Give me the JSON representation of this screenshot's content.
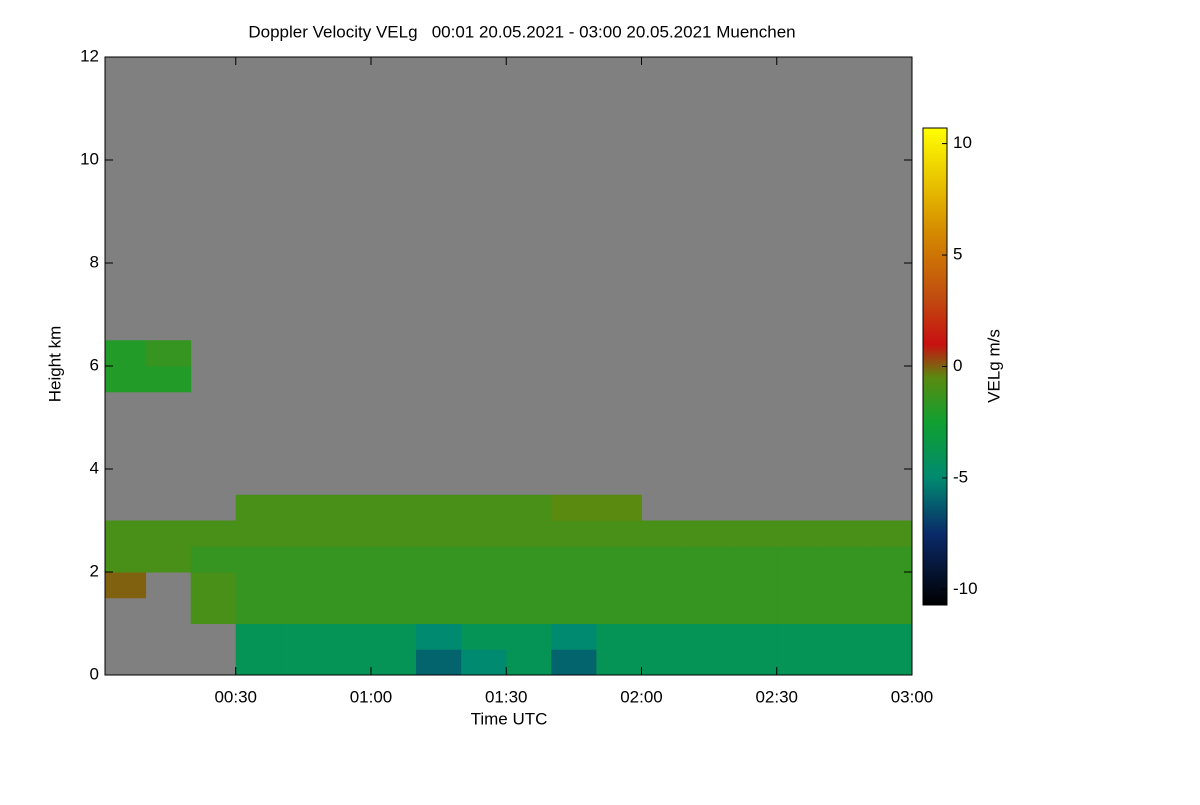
{
  "chart_data": {
    "type": "heatmap",
    "title": "Doppler Velocity VELg   00:01 20.05.2021 - 03:00 20.05.2021 Muenchen",
    "x_label": "Time UTC",
    "y_label": "Height km",
    "colorbar_label": "VELg m/s",
    "background": "#808080",
    "xlim": [
      1,
      180
    ],
    "xticks": [
      {
        "value": 30,
        "label": "00:30"
      },
      {
        "value": 60,
        "label": "01:00"
      },
      {
        "value": 90,
        "label": "01:30"
      },
      {
        "value": 120,
        "label": "02:00"
      },
      {
        "value": 150,
        "label": "02:30"
      },
      {
        "value": 180,
        "label": "03:00"
      }
    ],
    "ylim": [
      0,
      12
    ],
    "yticks": [
      0,
      2,
      4,
      6,
      8,
      10,
      12
    ],
    "clim": [
      -10.7,
      10.7
    ],
    "cticks": [
      -10,
      -5,
      0,
      5,
      10
    ],
    "colormap": [
      [
        -10.7,
        "#000000"
      ],
      [
        -7.5,
        "#0a2a6a"
      ],
      [
        -5,
        "#008a70"
      ],
      [
        -2.5,
        "#10a030"
      ],
      [
        -0.5,
        "#5a8a10"
      ],
      [
        1,
        "#c81010"
      ],
      [
        3,
        "#c04a10"
      ],
      [
        6,
        "#d48a00"
      ],
      [
        10.7,
        "#ffff00"
      ]
    ],
    "x_edges": [
      1,
      10,
      20,
      30,
      40,
      50,
      60,
      70,
      80,
      90,
      100,
      110,
      120,
      130,
      140,
      150,
      160,
      170,
      180
    ],
    "y_edges": [
      0,
      0.5,
      1,
      1.5,
      2,
      2.5,
      3,
      3.5,
      4,
      4.5,
      5,
      5.5,
      6,
      6.5,
      7
    ],
    "z": [
      [
        null,
        null,
        null,
        -4,
        -4,
        -4,
        -4,
        -6,
        -5,
        -4,
        -6,
        -4,
        -4,
        -4,
        -4,
        -4,
        -4,
        -4
      ],
      [
        null,
        null,
        null,
        -4,
        -4,
        -4,
        -4,
        -5,
        -4,
        -4,
        -5,
        -4,
        -4,
        -4,
        -4,
        -4,
        -4,
        -4
      ],
      [
        null,
        null,
        -1,
        -1.5,
        -1.5,
        -1.5,
        -1.5,
        -1.5,
        -1.5,
        -1.5,
        -1.5,
        -1.5,
        -1.5,
        -1.5,
        -1.5,
        -1.5,
        -1.5,
        -1.5
      ],
      [
        0,
        null,
        -1,
        -1.5,
        -1.5,
        -1.5,
        -1.5,
        -1.5,
        -1.5,
        -1.5,
        -1.5,
        -1.5,
        -1.5,
        -1.5,
        -1.5,
        -1.5,
        -1.5,
        -1.5
      ],
      [
        -1,
        -1,
        -1.5,
        -1.5,
        -1.5,
        -1.5,
        -1.5,
        -1.5,
        -1.5,
        -1.5,
        -1.5,
        -1.5,
        -1.5,
        -1.5,
        -1.5,
        -1.5,
        -1.5,
        -1.5
      ],
      [
        -1,
        -1,
        -1,
        -1,
        -1,
        -1,
        -1,
        -1,
        -1,
        -1,
        -1,
        -1,
        -1,
        -1,
        -1,
        -1,
        -1,
        -1
      ],
      [
        null,
        null,
        null,
        -1,
        -1,
        -1,
        -1,
        -1,
        -1,
        -1,
        -0.5,
        -0.5,
        null,
        null,
        null,
        null,
        null,
        null
      ],
      [
        null,
        null,
        null,
        null,
        null,
        null,
        null,
        null,
        null,
        null,
        null,
        null,
        null,
        null,
        null,
        null,
        null,
        null
      ],
      [
        null,
        null,
        null,
        null,
        null,
        null,
        null,
        null,
        null,
        null,
        null,
        null,
        null,
        null,
        null,
        null,
        null,
        null
      ],
      [
        null,
        null,
        null,
        null,
        null,
        null,
        null,
        null,
        null,
        null,
        null,
        null,
        null,
        null,
        null,
        null,
        null,
        null
      ],
      [
        null,
        null,
        null,
        null,
        null,
        null,
        null,
        null,
        null,
        null,
        null,
        null,
        null,
        null,
        null,
        null,
        null,
        null
      ],
      [
        -2,
        -2,
        null,
        null,
        null,
        null,
        null,
        null,
        null,
        null,
        null,
        null,
        null,
        null,
        null,
        null,
        null,
        null
      ],
      [
        -2,
        -1.5,
        null,
        null,
        null,
        null,
        null,
        null,
        null,
        null,
        null,
        null,
        null,
        null,
        null,
        null,
        null,
        null
      ],
      [
        null,
        null,
        null,
        null,
        null,
        null,
        null,
        null,
        null,
        null,
        null,
        null,
        null,
        null,
        null,
        null,
        null,
        null
      ]
    ]
  }
}
